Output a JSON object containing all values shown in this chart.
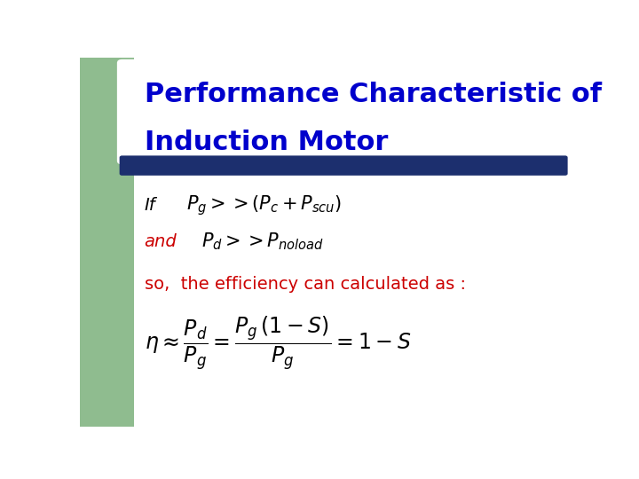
{
  "title_line1": "Performance Characteristic of",
  "title_line2": "Induction Motor",
  "title_color": "#0000CC",
  "title_fontsize": 22,
  "bg_color": "#FFFFFF",
  "left_bar_color": "#8FBC8F",
  "divider_color": "#1C2F6E",
  "text_if": "If",
  "text_and": "and",
  "text_so": "so,  the efficiency can calculated as :",
  "formula_if": "$P_g >> (P_c + P_{scu})$",
  "formula_and": "$P_d >> P_{noload}$",
  "formula_eta": "$\\eta \\approx \\dfrac{P_d}{P_g} = \\dfrac{P_g\\,(1-S)}{P_g} = 1 - S$",
  "red_color": "#CC0000",
  "black_color": "#000000",
  "dark_blue": "#1C2F6E"
}
